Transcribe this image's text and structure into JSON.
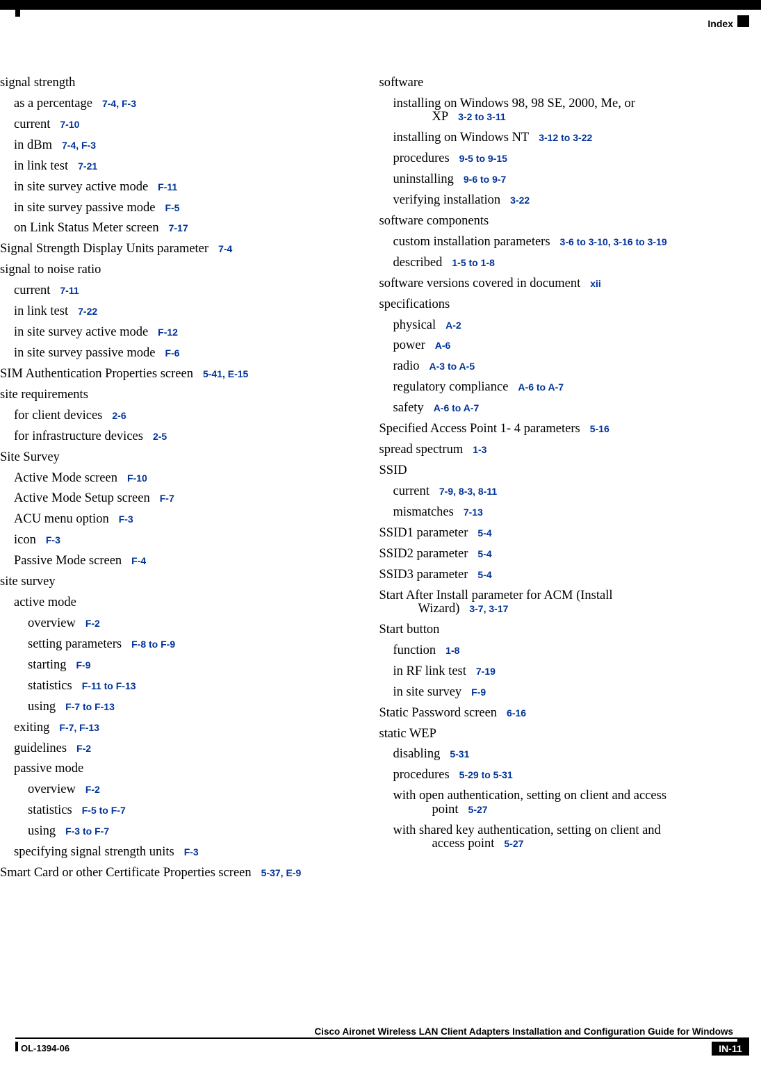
{
  "header": {
    "label": "Index"
  },
  "footer": {
    "book_title": "Cisco Aironet Wireless LAN Client Adapters Installation and Configuration Guide for Windows",
    "doc_id": "OL-1394-06",
    "page_num": "IN-11"
  },
  "link_color": "#003399",
  "left_col": [
    {
      "level": 0,
      "label": "signal strength",
      "ref": ""
    },
    {
      "level": 1,
      "label": "as a percentage",
      "ref": "7-4, F-3"
    },
    {
      "level": 1,
      "label": "current",
      "ref": "7-10"
    },
    {
      "level": 1,
      "label": "in dBm",
      "ref": "7-4, F-3"
    },
    {
      "level": 1,
      "label": "in link test",
      "ref": "7-21"
    },
    {
      "level": 1,
      "label": "in site survey active mode",
      "ref": "F-11"
    },
    {
      "level": 1,
      "label": "in site survey passive mode",
      "ref": "F-5"
    },
    {
      "level": 1,
      "label": "on Link Status Meter screen",
      "ref": "7-17"
    },
    {
      "level": 0,
      "label": "Signal Strength Display Units parameter",
      "ref": "7-4"
    },
    {
      "level": 0,
      "label": "signal to noise ratio",
      "ref": ""
    },
    {
      "level": 1,
      "label": "current",
      "ref": "7-11"
    },
    {
      "level": 1,
      "label": "in link test",
      "ref": "7-22"
    },
    {
      "level": 1,
      "label": "in site survey active mode",
      "ref": "F-12"
    },
    {
      "level": 1,
      "label": "in site survey passive mode",
      "ref": "F-6"
    },
    {
      "level": 0,
      "label": "SIM Authentication Properties screen",
      "ref": "5-41, E-15"
    },
    {
      "level": 0,
      "label": "site requirements",
      "ref": ""
    },
    {
      "level": 1,
      "label": "for client devices",
      "ref": "2-6"
    },
    {
      "level": 1,
      "label": "for infrastructure devices",
      "ref": "2-5"
    },
    {
      "level": 0,
      "label": "Site Survey",
      "ref": ""
    },
    {
      "level": 1,
      "label": "Active Mode screen",
      "ref": "F-10"
    },
    {
      "level": 1,
      "label": "Active Mode Setup screen",
      "ref": "F-7"
    },
    {
      "level": 1,
      "label": "ACU menu option",
      "ref": "F-3"
    },
    {
      "level": 1,
      "label": "icon",
      "ref": "F-3"
    },
    {
      "level": 1,
      "label": "Passive Mode screen",
      "ref": "F-4"
    },
    {
      "level": 0,
      "label": "site survey",
      "ref": ""
    },
    {
      "level": 1,
      "label": "active mode",
      "ref": ""
    },
    {
      "level": 2,
      "label": "overview",
      "ref": "F-2"
    },
    {
      "level": 2,
      "label": "setting parameters",
      "ref": "F-8 to F-9"
    },
    {
      "level": 2,
      "label": "starting",
      "ref": "F-9"
    },
    {
      "level": 2,
      "label": "statistics",
      "ref": "F-11 to F-13"
    },
    {
      "level": 2,
      "label": "using",
      "ref": "F-7 to F-13"
    },
    {
      "level": 1,
      "label": "exiting",
      "ref": "F-7, F-13"
    },
    {
      "level": 1,
      "label": "guidelines",
      "ref": "F-2"
    },
    {
      "level": 1,
      "label": "passive mode",
      "ref": ""
    },
    {
      "level": 2,
      "label": "overview",
      "ref": "F-2"
    },
    {
      "level": 2,
      "label": "statistics",
      "ref": "F-5 to F-7"
    },
    {
      "level": 2,
      "label": "using",
      "ref": "F-3 to F-7"
    },
    {
      "level": 1,
      "label": "specifying signal strength units",
      "ref": "F-3"
    },
    {
      "level": 0,
      "label": "Smart Card or other Certificate Properties screen",
      "ref": "5-37, E-9"
    }
  ],
  "right_col": [
    {
      "level": 0,
      "label": "software",
      "ref": ""
    },
    {
      "level": 1,
      "wrap": true,
      "label": "installing on Windows 98, 98 SE, 2000, Me, or ",
      "cont": "XP",
      "ref": "3-2 to 3-11"
    },
    {
      "level": 1,
      "label": "installing on Windows NT",
      "ref": "3-12 to 3-22"
    },
    {
      "level": 1,
      "label": "procedures",
      "ref": "9-5 to 9-15"
    },
    {
      "level": 1,
      "label": "uninstalling",
      "ref": "9-6 to 9-7"
    },
    {
      "level": 1,
      "label": "verifying installation",
      "ref": "3-22"
    },
    {
      "level": 0,
      "label": "software components",
      "ref": ""
    },
    {
      "level": 1,
      "label": "custom installation parameters",
      "ref": "3-6 to 3-10, 3-16 to 3-19"
    },
    {
      "level": 1,
      "label": "described",
      "ref": "1-5 to 1-8"
    },
    {
      "level": 0,
      "label": "software versions covered in document",
      "ref": "xii"
    },
    {
      "level": 0,
      "label": "specifications",
      "ref": ""
    },
    {
      "level": 1,
      "label": "physical",
      "ref": "A-2"
    },
    {
      "level": 1,
      "label": "power",
      "ref": "A-6"
    },
    {
      "level": 1,
      "label": "radio",
      "ref": "A-3 to A-5"
    },
    {
      "level": 1,
      "label": "regulatory compliance",
      "ref": "A-6 to A-7"
    },
    {
      "level": 1,
      "label": "safety",
      "ref": "A-6 to A-7"
    },
    {
      "level": 0,
      "label": "Specified Access Point 1- 4 parameters",
      "ref": "5-16"
    },
    {
      "level": 0,
      "label": "spread spectrum",
      "ref": "1-3"
    },
    {
      "level": 0,
      "label": "SSID",
      "ref": ""
    },
    {
      "level": 1,
      "label": "current",
      "ref": "7-9, 8-3, 8-11"
    },
    {
      "level": 1,
      "label": "mismatches",
      "ref": "7-13"
    },
    {
      "level": 0,
      "label": "SSID1 parameter",
      "ref": "5-4"
    },
    {
      "level": 0,
      "label": "SSID2 parameter",
      "ref": "5-4"
    },
    {
      "level": 0,
      "label": "SSID3 parameter",
      "ref": "5-4"
    },
    {
      "level": 0,
      "wrap": true,
      "label": "Start After Install parameter for ACM (Install ",
      "cont": "Wizard)",
      "ref": "3-7, 3-17"
    },
    {
      "level": 0,
      "label": "Start button",
      "ref": ""
    },
    {
      "level": 1,
      "label": "function",
      "ref": "1-8"
    },
    {
      "level": 1,
      "label": "in RF link test",
      "ref": "7-19"
    },
    {
      "level": 1,
      "label": "in site survey",
      "ref": "F-9"
    },
    {
      "level": 0,
      "label": "Static Password screen",
      "ref": "6-16"
    },
    {
      "level": 0,
      "label": "static WEP",
      "ref": ""
    },
    {
      "level": 1,
      "label": "disabling",
      "ref": "5-31"
    },
    {
      "level": 1,
      "label": "procedures",
      "ref": "5-29 to 5-31"
    },
    {
      "level": 1,
      "wrap": true,
      "label": "with open authentication, setting on client and access ",
      "cont": "point",
      "ref": "5-27"
    },
    {
      "level": 1,
      "wrap": true,
      "label": "with shared key authentication, setting on client and ",
      "cont": "access point",
      "ref": "5-27"
    }
  ]
}
